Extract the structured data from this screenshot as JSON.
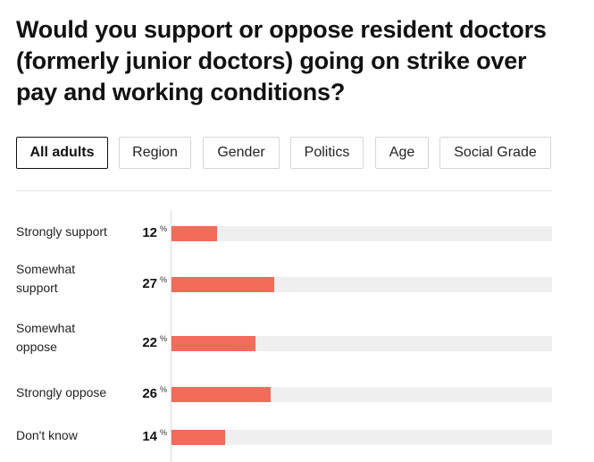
{
  "title": "Would you support or oppose resident doctors (formerly junior doctors) going on strike over pay and working conditions?",
  "tabs": [
    {
      "label": "All adults",
      "active": true
    },
    {
      "label": "Region",
      "active": false
    },
    {
      "label": "Gender",
      "active": false
    },
    {
      "label": "Politics",
      "active": false
    },
    {
      "label": "Age",
      "active": false
    },
    {
      "label": "Social Grade",
      "active": false
    }
  ],
  "colors": {
    "bar": "#f26b5b",
    "track": "#efeff0",
    "accent": "#111111"
  },
  "chart_data": {
    "type": "bar",
    "orientation": "horizontal",
    "categories": [
      "Strongly support",
      "Somewhat support",
      "Somewhat oppose",
      "Strongly oppose",
      "Don't know"
    ],
    "values": [
      12,
      27,
      22,
      26,
      14
    ],
    "unit": "%",
    "xlim": [
      0,
      100
    ]
  }
}
